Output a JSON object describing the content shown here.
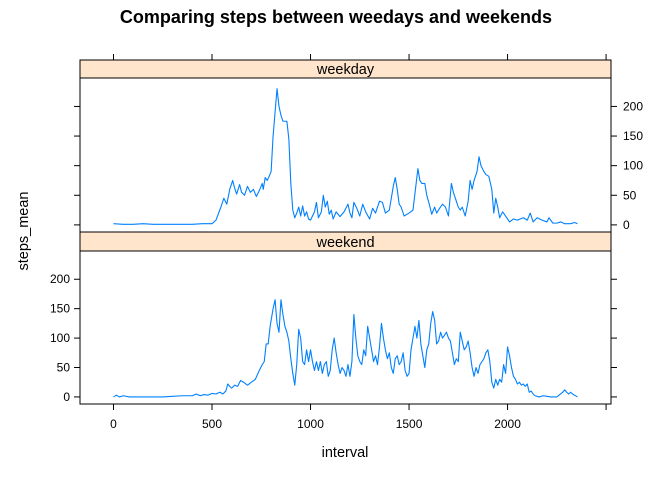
{
  "chart_data": {
    "type": "line",
    "title": "Comparing steps between weedays and weekends",
    "xlabel": "interval",
    "ylabel": "steps_mean",
    "xlim": [
      -170,
      2525
    ],
    "ylim": [
      -12,
      248
    ],
    "x_ticks": [
      "0",
      "500",
      "1000",
      "1500",
      "2000"
    ],
    "y_ticks": [
      "0",
      "50",
      "100",
      "150",
      "200"
    ],
    "grid": false,
    "legend": "none",
    "line_color": "#0080ff",
    "strip_color": "#ffe5cc",
    "panels": [
      {
        "name": "weekday",
        "points": [
          [
            0,
            2
          ],
          [
            50,
            1
          ],
          [
            100,
            1
          ],
          [
            150,
            2
          ],
          [
            200,
            1
          ],
          [
            300,
            1
          ],
          [
            400,
            1
          ],
          [
            450,
            2
          ],
          [
            500,
            2
          ],
          [
            520,
            8
          ],
          [
            545,
            30
          ],
          [
            560,
            45
          ],
          [
            575,
            35
          ],
          [
            590,
            60
          ],
          [
            605,
            75
          ],
          [
            615,
            62
          ],
          [
            625,
            52
          ],
          [
            640,
            68
          ],
          [
            650,
            55
          ],
          [
            665,
            50
          ],
          [
            680,
            65
          ],
          [
            695,
            55
          ],
          [
            710,
            60
          ],
          [
            725,
            48
          ],
          [
            740,
            58
          ],
          [
            755,
            70
          ],
          [
            760,
            60
          ],
          [
            770,
            80
          ],
          [
            780,
            75
          ],
          [
            790,
            82
          ],
          [
            800,
            90
          ],
          [
            810,
            150
          ],
          [
            820,
            190
          ],
          [
            830,
            230
          ],
          [
            840,
            200
          ],
          [
            850,
            185
          ],
          [
            860,
            175
          ],
          [
            880,
            175
          ],
          [
            890,
            145
          ],
          [
            900,
            70
          ],
          [
            910,
            25
          ],
          [
            920,
            12
          ],
          [
            930,
            20
          ],
          [
            940,
            30
          ],
          [
            950,
            15
          ],
          [
            960,
            32
          ],
          [
            970,
            15
          ],
          [
            980,
            22
          ],
          [
            990,
            10
          ],
          [
            1000,
            8
          ],
          [
            1020,
            22
          ],
          [
            1030,
            38
          ],
          [
            1040,
            12
          ],
          [
            1055,
            22
          ],
          [
            1065,
            50
          ],
          [
            1075,
            30
          ],
          [
            1085,
            40
          ],
          [
            1095,
            18
          ],
          [
            1105,
            25
          ],
          [
            1115,
            10
          ],
          [
            1130,
            22
          ],
          [
            1150,
            14
          ],
          [
            1170,
            22
          ],
          [
            1190,
            35
          ],
          [
            1200,
            20
          ],
          [
            1210,
            12
          ],
          [
            1220,
            38
          ],
          [
            1235,
            28
          ],
          [
            1250,
            15
          ],
          [
            1265,
            35
          ],
          [
            1280,
            22
          ],
          [
            1300,
            10
          ],
          [
            1315,
            28
          ],
          [
            1330,
            20
          ],
          [
            1350,
            40
          ],
          [
            1365,
            38
          ],
          [
            1380,
            20
          ],
          [
            1400,
            25
          ],
          [
            1420,
            65
          ],
          [
            1430,
            80
          ],
          [
            1440,
            60
          ],
          [
            1450,
            35
          ],
          [
            1460,
            30
          ],
          [
            1475,
            15
          ],
          [
            1500,
            20
          ],
          [
            1520,
            25
          ],
          [
            1545,
            95
          ],
          [
            1555,
            75
          ],
          [
            1565,
            70
          ],
          [
            1580,
            70
          ],
          [
            1590,
            50
          ],
          [
            1605,
            32
          ],
          [
            1615,
            18
          ],
          [
            1630,
            30
          ],
          [
            1640,
            20
          ],
          [
            1655,
            28
          ],
          [
            1670,
            35
          ],
          [
            1685,
            30
          ],
          [
            1700,
            15
          ],
          [
            1715,
            70
          ],
          [
            1725,
            55
          ],
          [
            1740,
            40
          ],
          [
            1750,
            30
          ],
          [
            1760,
            25
          ],
          [
            1770,
            30
          ],
          [
            1785,
            15
          ],
          [
            1800,
            40
          ],
          [
            1810,
            75
          ],
          [
            1820,
            60
          ],
          [
            1830,
            75
          ],
          [
            1845,
            90
          ],
          [
            1855,
            115
          ],
          [
            1865,
            100
          ],
          [
            1880,
            90
          ],
          [
            1890,
            85
          ],
          [
            1905,
            82
          ],
          [
            1920,
            60
          ],
          [
            1930,
            20
          ],
          [
            1940,
            45
          ],
          [
            1950,
            30
          ],
          [
            1960,
            12
          ],
          [
            1975,
            22
          ],
          [
            1990,
            15
          ],
          [
            2010,
            5
          ],
          [
            2030,
            10
          ],
          [
            2050,
            8
          ],
          [
            2080,
            12
          ],
          [
            2100,
            8
          ],
          [
            2115,
            20
          ],
          [
            2130,
            5
          ],
          [
            2150,
            12
          ],
          [
            2175,
            8
          ],
          [
            2200,
            5
          ],
          [
            2210,
            12
          ],
          [
            2230,
            3
          ],
          [
            2250,
            3
          ],
          [
            2270,
            5
          ],
          [
            2290,
            2
          ],
          [
            2320,
            2
          ],
          [
            2340,
            4
          ],
          [
            2355,
            2
          ]
        ]
      },
      {
        "name": "weekend",
        "points": [
          [
            0,
            0
          ],
          [
            15,
            3
          ],
          [
            30,
            0
          ],
          [
            50,
            2
          ],
          [
            80,
            0
          ],
          [
            150,
            0
          ],
          [
            200,
            0
          ],
          [
            250,
            0
          ],
          [
            300,
            1
          ],
          [
            350,
            2
          ],
          [
            400,
            2
          ],
          [
            420,
            5
          ],
          [
            440,
            2
          ],
          [
            460,
            4
          ],
          [
            480,
            3
          ],
          [
            500,
            6
          ],
          [
            520,
            5
          ],
          [
            540,
            8
          ],
          [
            555,
            5
          ],
          [
            570,
            10
          ],
          [
            580,
            22
          ],
          [
            590,
            18
          ],
          [
            600,
            15
          ],
          [
            615,
            20
          ],
          [
            630,
            18
          ],
          [
            645,
            28
          ],
          [
            660,
            25
          ],
          [
            680,
            20
          ],
          [
            700,
            25
          ],
          [
            720,
            30
          ],
          [
            740,
            45
          ],
          [
            755,
            55
          ],
          [
            765,
            60
          ],
          [
            775,
            90
          ],
          [
            785,
            90
          ],
          [
            795,
            120
          ],
          [
            810,
            150
          ],
          [
            820,
            165
          ],
          [
            830,
            125
          ],
          [
            840,
            110
          ],
          [
            850,
            165
          ],
          [
            860,
            140
          ],
          [
            870,
            120
          ],
          [
            880,
            110
          ],
          [
            890,
            95
          ],
          [
            900,
            65
          ],
          [
            910,
            40
          ],
          [
            920,
            20
          ],
          [
            930,
            55
          ],
          [
            940,
            115
          ],
          [
            950,
            100
          ],
          [
            960,
            60
          ],
          [
            970,
            55
          ],
          [
            980,
            80
          ],
          [
            990,
            60
          ],
          [
            1000,
            80
          ],
          [
            1010,
            60
          ],
          [
            1020,
            45
          ],
          [
            1030,
            60
          ],
          [
            1040,
            45
          ],
          [
            1050,
            60
          ],
          [
            1060,
            40
          ],
          [
            1070,
            55
          ],
          [
            1080,
            60
          ],
          [
            1090,
            35
          ],
          [
            1100,
            45
          ],
          [
            1110,
            80
          ],
          [
            1120,
            100
          ],
          [
            1130,
            75
          ],
          [
            1140,
            55
          ],
          [
            1150,
            40
          ],
          [
            1160,
            50
          ],
          [
            1170,
            45
          ],
          [
            1180,
            35
          ],
          [
            1190,
            55
          ],
          [
            1200,
            35
          ],
          [
            1210,
            60
          ],
          [
            1220,
            140
          ],
          [
            1230,
            100
          ],
          [
            1240,
            70
          ],
          [
            1250,
            60
          ],
          [
            1260,
            55
          ],
          [
            1270,
            80
          ],
          [
            1280,
            70
          ],
          [
            1290,
            120
          ],
          [
            1300,
            100
          ],
          [
            1310,
            80
          ],
          [
            1320,
            60
          ],
          [
            1330,
            70
          ],
          [
            1340,
            55
          ],
          [
            1350,
            85
          ],
          [
            1360,
            125
          ],
          [
            1370,
            100
          ],
          [
            1380,
            80
          ],
          [
            1390,
            65
          ],
          [
            1400,
            75
          ],
          [
            1410,
            50
          ],
          [
            1420,
            40
          ],
          [
            1430,
            65
          ],
          [
            1440,
            70
          ],
          [
            1450,
            55
          ],
          [
            1460,
            60
          ],
          [
            1470,
            75
          ],
          [
            1480,
            45
          ],
          [
            1490,
            35
          ],
          [
            1500,
            40
          ],
          [
            1510,
            80
          ],
          [
            1520,
            100
          ],
          [
            1530,
            120
          ],
          [
            1540,
            100
          ],
          [
            1550,
            130
          ],
          [
            1560,
            90
          ],
          [
            1570,
            70
          ],
          [
            1580,
            50
          ],
          [
            1590,
            80
          ],
          [
            1600,
            90
          ],
          [
            1610,
            125
          ],
          [
            1620,
            145
          ],
          [
            1630,
            130
          ],
          [
            1640,
            90
          ],
          [
            1650,
            95
          ],
          [
            1660,
            110
          ],
          [
            1670,
            100
          ],
          [
            1680,
            105
          ],
          [
            1690,
            110
          ],
          [
            1700,
            100
          ],
          [
            1710,
            95
          ],
          [
            1720,
            75
          ],
          [
            1730,
            55
          ],
          [
            1740,
            65
          ],
          [
            1750,
            60
          ],
          [
            1760,
            110
          ],
          [
            1770,
            95
          ],
          [
            1780,
            80
          ],
          [
            1790,
            85
          ],
          [
            1800,
            95
          ],
          [
            1810,
            75
          ],
          [
            1820,
            50
          ],
          [
            1830,
            35
          ],
          [
            1840,
            50
          ],
          [
            1850,
            40
          ],
          [
            1860,
            55
          ],
          [
            1870,
            60
          ],
          [
            1880,
            65
          ],
          [
            1890,
            75
          ],
          [
            1900,
            80
          ],
          [
            1910,
            60
          ],
          [
            1920,
            25
          ],
          [
            1930,
            15
          ],
          [
            1940,
            30
          ],
          [
            1950,
            20
          ],
          [
            1960,
            30
          ],
          [
            1970,
            25
          ],
          [
            1980,
            55
          ],
          [
            1990,
            40
          ],
          [
            2000,
            85
          ],
          [
            2010,
            70
          ],
          [
            2020,
            50
          ],
          [
            2030,
            35
          ],
          [
            2040,
            30
          ],
          [
            2050,
            22
          ],
          [
            2060,
            25
          ],
          [
            2070,
            20
          ],
          [
            2080,
            22
          ],
          [
            2090,
            18
          ],
          [
            2100,
            22
          ],
          [
            2110,
            8
          ],
          [
            2120,
            10
          ],
          [
            2130,
            5
          ],
          [
            2140,
            2
          ],
          [
            2160,
            0
          ],
          [
            2180,
            2
          ],
          [
            2200,
            1
          ],
          [
            2220,
            0
          ],
          [
            2250,
            0
          ],
          [
            2280,
            8
          ],
          [
            2290,
            12
          ],
          [
            2300,
            8
          ],
          [
            2310,
            5
          ],
          [
            2320,
            8
          ],
          [
            2330,
            5
          ],
          [
            2340,
            3
          ],
          [
            2355,
            0
          ]
        ]
      }
    ]
  }
}
